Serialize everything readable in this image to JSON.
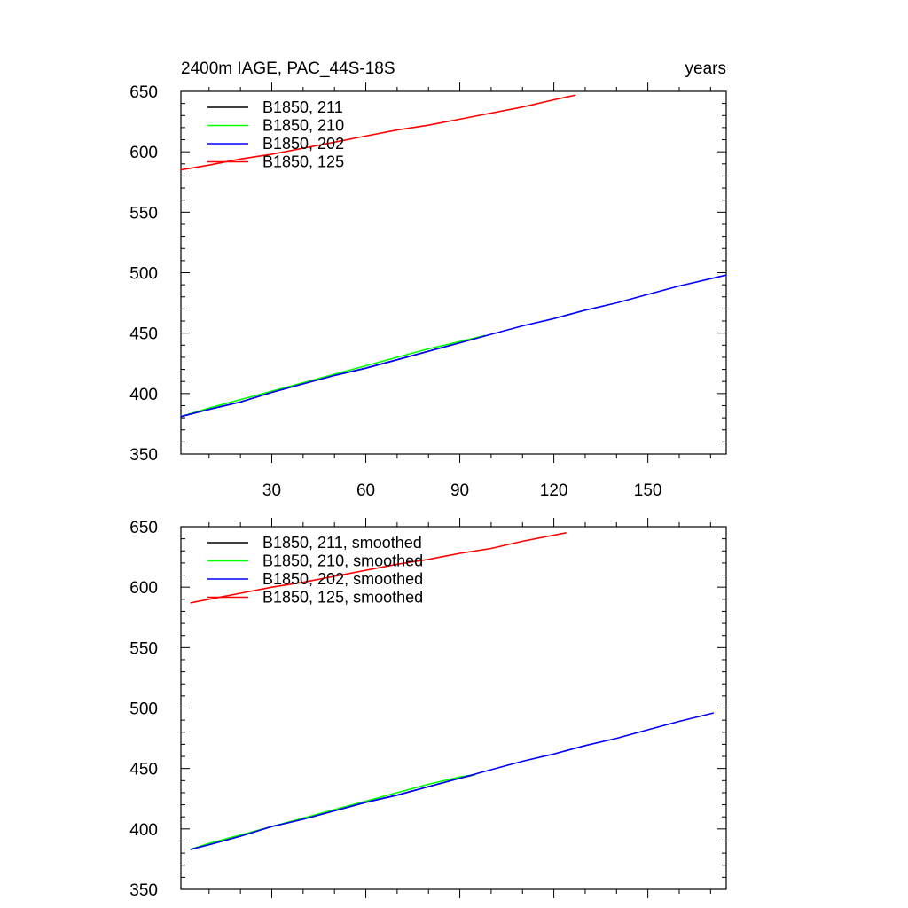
{
  "chart_data": [
    {
      "type": "line",
      "title_left": "2400m IAGE, PAC_44S-18S",
      "title_right": "years",
      "xlim": [
        1,
        175
      ],
      "ylim": [
        350,
        650
      ],
      "x_ticks": [
        30,
        60,
        90,
        120,
        150
      ],
      "x_tick_labels": [
        "30",
        "60",
        "90",
        "120",
        "150"
      ],
      "y_ticks": [
        350,
        400,
        450,
        500,
        550,
        600,
        650
      ],
      "y_tick_labels": [
        "350",
        "400",
        "450",
        "500",
        "550",
        "600",
        "650"
      ],
      "grid": false,
      "legend_position": "top-left",
      "series": [
        {
          "name": "B1850, 211",
          "color": "#000000",
          "x": [
            1,
            10,
            20,
            30,
            40,
            50,
            60,
            70,
            80,
            90,
            98
          ],
          "y": [
            381,
            387,
            393,
            401,
            408,
            415,
            421,
            428,
            435,
            442,
            448
          ]
        },
        {
          "name": "B1850, 210",
          "color": "#00ff00",
          "x": [
            1,
            10,
            20,
            30,
            40,
            50,
            60,
            70,
            80,
            90,
            98
          ],
          "y": [
            381,
            388,
            395,
            402,
            409,
            416,
            423,
            430,
            437,
            443,
            448
          ]
        },
        {
          "name": "B1850, 202",
          "color": "#0000ff",
          "x": [
            1,
            10,
            20,
            30,
            40,
            50,
            60,
            70,
            80,
            90,
            100,
            110,
            120,
            130,
            140,
            150,
            160,
            170,
            175
          ],
          "y": [
            381,
            387,
            393,
            401,
            408,
            415,
            421,
            428,
            435,
            442,
            449,
            456,
            462,
            469,
            475,
            482,
            489,
            495,
            498
          ]
        },
        {
          "name": "B1850, 125",
          "color": "#ff0000",
          "x": [
            1,
            10,
            20,
            30,
            40,
            50,
            60,
            70,
            80,
            90,
            100,
            110,
            120,
            127
          ],
          "y": [
            585,
            589,
            594,
            598,
            603,
            608,
            613,
            618,
            622,
            627,
            632,
            637,
            643,
            647
          ]
        }
      ]
    },
    {
      "type": "line",
      "xlim": [
        1,
        175
      ],
      "ylim": [
        350,
        650
      ],
      "x_ticks": [
        30,
        60,
        90,
        120,
        150
      ],
      "y_ticks": [
        350,
        400,
        450,
        500,
        550,
        600,
        650
      ],
      "y_tick_labels": [
        "350",
        "400",
        "450",
        "500",
        "550",
        "600",
        "650"
      ],
      "grid": false,
      "legend_position": "top-left",
      "series": [
        {
          "name": "B1850, 211, smoothed",
          "color": "#000000",
          "x": [
            4,
            10,
            20,
            30,
            40,
            50,
            60,
            70,
            80,
            90,
            95
          ],
          "y": [
            383,
            387,
            394,
            402,
            408,
            415,
            422,
            428,
            435,
            442,
            445
          ]
        },
        {
          "name": "B1850, 210, smoothed",
          "color": "#00ff00",
          "x": [
            4,
            10,
            20,
            30,
            40,
            50,
            60,
            70,
            80,
            90,
            95
          ],
          "y": [
            383,
            388,
            395,
            402,
            409,
            416,
            423,
            430,
            437,
            443,
            445
          ]
        },
        {
          "name": "B1850, 202, smoothed",
          "color": "#0000ff",
          "x": [
            4,
            10,
            20,
            30,
            40,
            50,
            60,
            70,
            80,
            90,
            100,
            110,
            120,
            130,
            140,
            150,
            160,
            171
          ],
          "y": [
            383,
            387,
            394,
            402,
            408,
            415,
            422,
            428,
            435,
            442,
            449,
            456,
            462,
            469,
            475,
            482,
            489,
            496
          ]
        },
        {
          "name": "B1850, 125, smoothed",
          "color": "#ff0000",
          "x": [
            4,
            10,
            20,
            30,
            40,
            50,
            60,
            70,
            80,
            90,
            100,
            110,
            124
          ],
          "y": [
            587,
            590,
            595,
            600,
            604,
            609,
            614,
            619,
            623,
            628,
            632,
            638,
            645
          ]
        }
      ]
    }
  ]
}
